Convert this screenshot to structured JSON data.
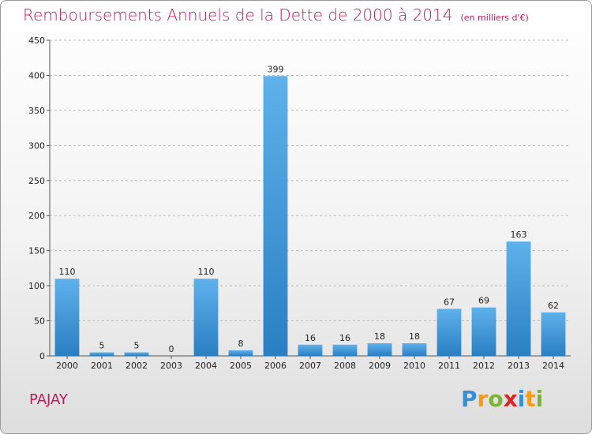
{
  "title": "Remboursements Annuels de la Dette de 2000 à 2014",
  "unit": "(en milliers d'€)",
  "commune": "PAJAY",
  "logo": {
    "letters": [
      "P",
      "r",
      "o",
      "x",
      "i",
      "t",
      "i"
    ],
    "colors": [
      "#3a8fd0",
      "#f29b1d",
      "#7ab730",
      "#e02424",
      "#3a8fd0",
      "#f29b1d",
      "#7ab730"
    ]
  },
  "colors": {
    "title": "#c2185b",
    "bar_top": "#5eb1ea",
    "bar_bottom": "#2a7fc2",
    "grid": "#bbbbbb"
  },
  "chart_data": {
    "type": "bar",
    "title": "Remboursements Annuels de la Dette de 2000 à 2014",
    "xlabel": "",
    "ylabel": "",
    "ylim": [
      0,
      450
    ],
    "yticks": [
      0,
      50,
      100,
      150,
      200,
      250,
      300,
      350,
      400,
      450
    ],
    "grid": "horizontal dashed",
    "categories": [
      "2000",
      "2001",
      "2002",
      "2003",
      "2004",
      "2005",
      "2006",
      "2007",
      "2008",
      "2009",
      "2010",
      "2011",
      "2012",
      "2013",
      "2014"
    ],
    "values": [
      110,
      5,
      5,
      0,
      110,
      8,
      399,
      16,
      16,
      18,
      18,
      67,
      69,
      163,
      62
    ]
  }
}
